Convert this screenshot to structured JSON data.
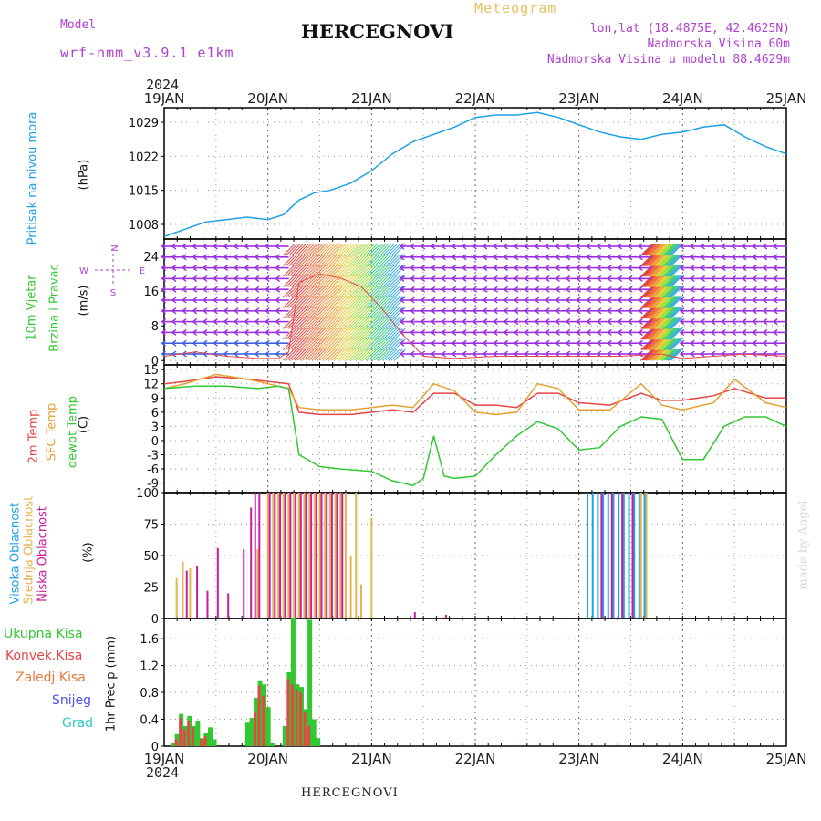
{
  "header": {
    "model_label": "Model",
    "model_name": "wrf-nmm_v3.9.1 e1km",
    "title": "HERCEGNOVI",
    "meteogram_label": "Meteogram",
    "lonlat": "lon,lat (18.4875E, 42.4625N)",
    "elevation": "Nadmorska Visina 60m",
    "model_elevation": "Nadmorska Visina u modelu 88.4629m",
    "year_top": "2024",
    "year_bottom": "2024",
    "footer_title": "HERCEGNOVI",
    "watermark": "made by Angel"
  },
  "time_axis": {
    "labels": [
      "19JAN",
      "20JAN",
      "21JAN",
      "22JAN",
      "23JAN",
      "24JAN",
      "25JAN"
    ]
  },
  "panel_labels": {
    "pressure": [
      "Pritisak na nivou mora",
      "(hPa)"
    ],
    "wind": [
      "10m Vjetar",
      "Brzina i Pravac",
      "(m/s)"
    ],
    "wind_compass": [
      "N",
      "W",
      "S",
      "E"
    ],
    "temp": [
      "2m Temp",
      "SFC Temp",
      "dewpt Temp",
      "(C)"
    ],
    "cloud": [
      "Visoka Oblacnost",
      "Srednja Oblacnost",
      "Niska Oblacnost",
      "(%)"
    ],
    "precip_legend": [
      "Ukupna Kisa",
      "Konvek.Kisa",
      "Zaledj.Kisa",
      "Snijeg",
      "Grad"
    ],
    "precip_unit": "1hr Precip (mm)"
  },
  "colors": {
    "pressure": "#1ea0e6",
    "temp2m": "#e64646",
    "sfc": "#e6a032",
    "dewpt": "#32c832",
    "cloud_high": "#1ea0e6",
    "cloud_mid": "#e6b450",
    "cloud_low": "#c81ea0",
    "precip_total": "#32c832",
    "precip_conv": "#e64646",
    "precip_frz": "#e6783c",
    "precip_snow": "#5050e6",
    "precip_hail": "#32c8c8",
    "wind_arrow": "#9a30e0"
  },
  "chart_data": [
    {
      "type": "line",
      "name": "pressure",
      "ylabel": "Pritisak na nivou mora (hPa)",
      "yticks": [
        1008,
        1015,
        1022,
        1029
      ],
      "ylim": [
        1005,
        1032
      ],
      "x_days": [
        0,
        0.2,
        0.4,
        0.6,
        0.8,
        1.0,
        1.15,
        1.3,
        1.45,
        1.6,
        1.8,
        2.0,
        2.2,
        2.4,
        2.6,
        2.8,
        3.0,
        3.2,
        3.4,
        3.6,
        3.8,
        4.0,
        4.2,
        4.4,
        4.6,
        4.8,
        5.0,
        5.2,
        5.4,
        5.6,
        5.8,
        6.0
      ],
      "values": [
        1005.5,
        1007,
        1008.5,
        1009,
        1009.5,
        1009,
        1010,
        1013,
        1014.5,
        1015,
        1016.5,
        1019,
        1022.5,
        1025,
        1026.5,
        1028,
        1030,
        1030.5,
        1030.5,
        1031,
        1030,
        1028.5,
        1027,
        1026,
        1025.5,
        1026.5,
        1027,
        1028,
        1028.5,
        1026,
        1024,
        1022.5
      ]
    },
    {
      "type": "line",
      "name": "wind",
      "ylabel": "10m Vjetar Brzina i Pravac (m/s)",
      "yticks": [
        0,
        8,
        16,
        24
      ],
      "ylim": [
        -1,
        28
      ],
      "x_days": [
        0,
        0.3,
        0.6,
        0.9,
        1.1,
        1.2,
        1.3,
        1.5,
        1.7,
        1.9,
        2.1,
        2.3,
        2.5,
        2.8,
        3.2,
        3.6,
        4.0,
        4.4,
        4.8,
        5.0,
        5.3,
        5.6,
        6.0
      ],
      "values": [
        1,
        2,
        1,
        0.5,
        0.5,
        2,
        18,
        20,
        19,
        17,
        12,
        6,
        1,
        0.5,
        1,
        1,
        1,
        1,
        1.5,
        0.5,
        1,
        1.5,
        1
      ]
    },
    {
      "type": "line",
      "name": "temperature",
      "ylabel": "(C)",
      "yticks": [
        -9,
        -6,
        -3,
        0,
        3,
        6,
        9,
        12,
        15
      ],
      "ylim": [
        -11,
        16
      ],
      "series": [
        {
          "name": "2m Temp",
          "x_days": [
            0,
            0.2,
            0.5,
            0.8,
            1.0,
            1.2,
            1.3,
            1.5,
            1.8,
            2.0,
            2.2,
            2.4,
            2.6,
            2.8,
            3.0,
            3.2,
            3.4,
            3.6,
            3.8,
            4.0,
            4.3,
            4.6,
            4.8,
            5.0,
            5.3,
            5.5,
            5.8,
            6.0
          ],
          "values": [
            12,
            12.5,
            13.5,
            13,
            12.5,
            12,
            6,
            5.5,
            5.5,
            6,
            6.5,
            6,
            10,
            10,
            7.5,
            7.5,
            7,
            10,
            10,
            8,
            7.5,
            10,
            8.5,
            8.5,
            9.5,
            11,
            9,
            9
          ]
        },
        {
          "name": "SFC Temp",
          "x_days": [
            0,
            0.2,
            0.5,
            0.8,
            1.0,
            1.2,
            1.3,
            1.5,
            1.8,
            2.0,
            2.2,
            2.4,
            2.6,
            2.8,
            3.0,
            3.2,
            3.4,
            3.6,
            3.8,
            4.0,
            4.3,
            4.6,
            4.8,
            5.0,
            5.3,
            5.5,
            5.8,
            6.0
          ],
          "values": [
            11,
            12,
            14,
            13,
            12,
            11,
            7,
            6.5,
            6.5,
            7,
            7.5,
            7,
            12,
            10.5,
            6,
            5.5,
            6,
            12,
            11,
            6.5,
            6.5,
            12,
            7.5,
            6.5,
            8,
            13,
            8,
            7
          ]
        },
        {
          "name": "dewpt Temp",
          "x_days": [
            0,
            0.3,
            0.6,
            0.9,
            1.1,
            1.2,
            1.3,
            1.5,
            1.7,
            2.0,
            2.2,
            2.4,
            2.5,
            2.6,
            2.7,
            2.8,
            3.0,
            3.2,
            3.4,
            3.6,
            3.8,
            4.0,
            4.2,
            4.4,
            4.6,
            4.8,
            5.0,
            5.2,
            5.4,
            5.6,
            5.8,
            6.0
          ],
          "values": [
            11,
            11.5,
            11.5,
            11,
            11.5,
            11,
            -3,
            -5.5,
            -6,
            -6.5,
            -8.5,
            -9.5,
            -8,
            1,
            -7.5,
            -8,
            -7.5,
            -3,
            1,
            4,
            2.5,
            -2,
            -1.5,
            3,
            5,
            4.5,
            -4,
            -4,
            3,
            5,
            5,
            3
          ]
        }
      ]
    },
    {
      "type": "bar",
      "name": "cloud_cover",
      "ylabel": "(%)",
      "yticks": [
        0,
        25,
        50,
        75,
        100
      ],
      "ylim": [
        0,
        100
      ],
      "series": [
        {
          "name": "Visoka Oblacnost",
          "x_days": [
            4.1,
            4.15,
            4.2,
            4.25,
            4.3,
            4.35,
            4.4,
            4.45,
            4.5,
            4.55,
            4.6,
            4.65
          ],
          "values": [
            100,
            100,
            100,
            100,
            100,
            100,
            100,
            100,
            100,
            100,
            100,
            100
          ]
        },
        {
          "name": "Srednja Oblacnost",
          "x_days": [
            0.12,
            0.18,
            0.25,
            0.9,
            1.0,
            1.05,
            1.1,
            1.15,
            1.2,
            1.25,
            1.3,
            1.35,
            1.4,
            1.45,
            1.5,
            1.55,
            1.6,
            1.65,
            1.7,
            1.75,
            1.8,
            1.85,
            1.9,
            2.0,
            4.6,
            4.65
          ],
          "values": [
            32,
            45,
            40,
            55,
            100,
            100,
            100,
            100,
            100,
            100,
            100,
            100,
            100,
            100,
            100,
            100,
            100,
            100,
            100,
            100,
            50,
            100,
            27,
            80,
            100,
            100
          ]
        },
        {
          "name": "Niska Oblacnost",
          "x_days": [
            0.2,
            0.3,
            0.4,
            0.5,
            0.6,
            0.75,
            0.82,
            0.86,
            0.9,
            1.0,
            1.05,
            1.1,
            1.15,
            1.2,
            1.25,
            1.3,
            1.35,
            1.4,
            1.45,
            1.5,
            1.55,
            1.6,
            1.65,
            1.7,
            2.4,
            2.7,
            4.2,
            4.3,
            4.4,
            4.5
          ],
          "values": [
            38,
            42,
            22,
            56,
            20,
            55,
            88,
            100,
            100,
            100,
            100,
            100,
            100,
            100,
            100,
            100,
            100,
            100,
            100,
            100,
            100,
            100,
            100,
            100,
            5,
            3,
            100,
            100,
            100,
            100
          ]
        }
      ]
    },
    {
      "type": "bar",
      "name": "precipitation",
      "ylabel": "1hr Precip (mm)",
      "yticks": [
        0,
        0.4,
        0.8,
        1.2,
        1.6
      ],
      "ylim": [
        0,
        1.9
      ],
      "series": [
        {
          "name": "Ukupna Kisa",
          "x_days": [
            0.08,
            0.12,
            0.16,
            0.2,
            0.24,
            0.28,
            0.32,
            0.36,
            0.4,
            0.44,
            0.48,
            0.8,
            0.84,
            0.88,
            0.92,
            0.96,
            1.0,
            1.04,
            1.16,
            1.2,
            1.24,
            1.28,
            1.32,
            1.36,
            1.4,
            1.44,
            1.48
          ],
          "values": [
            0.05,
            0.18,
            0.48,
            0.3,
            0.45,
            0.3,
            0.38,
            0.12,
            0.2,
            0.28,
            0.1,
            0.35,
            0.42,
            0.72,
            0.98,
            0.92,
            0.58,
            0.05,
            0.3,
            1.1,
            1.9,
            0.92,
            0.88,
            0.55,
            1.88,
            0.4,
            0.12
          ]
        },
        {
          "name": "Konvek.Kisa",
          "x_days": [
            0.12,
            0.16,
            0.2,
            0.24,
            0.28,
            0.36,
            0.4,
            0.88,
            0.92,
            0.96,
            1.2,
            1.24,
            1.28,
            1.32,
            1.36,
            1.4
          ],
          "values": [
            0.1,
            0.42,
            0.25,
            0.38,
            0.28,
            0.1,
            0.15,
            0.5,
            0.9,
            0.75,
            1.0,
            0.92,
            0.85,
            0.8,
            0.5,
            0.3
          ]
        },
        {
          "name": "Zaledj.Kisa",
          "x_days": [],
          "values": []
        },
        {
          "name": "Snijeg",
          "x_days": [],
          "values": []
        },
        {
          "name": "Grad",
          "x_days": [],
          "values": []
        }
      ]
    }
  ]
}
